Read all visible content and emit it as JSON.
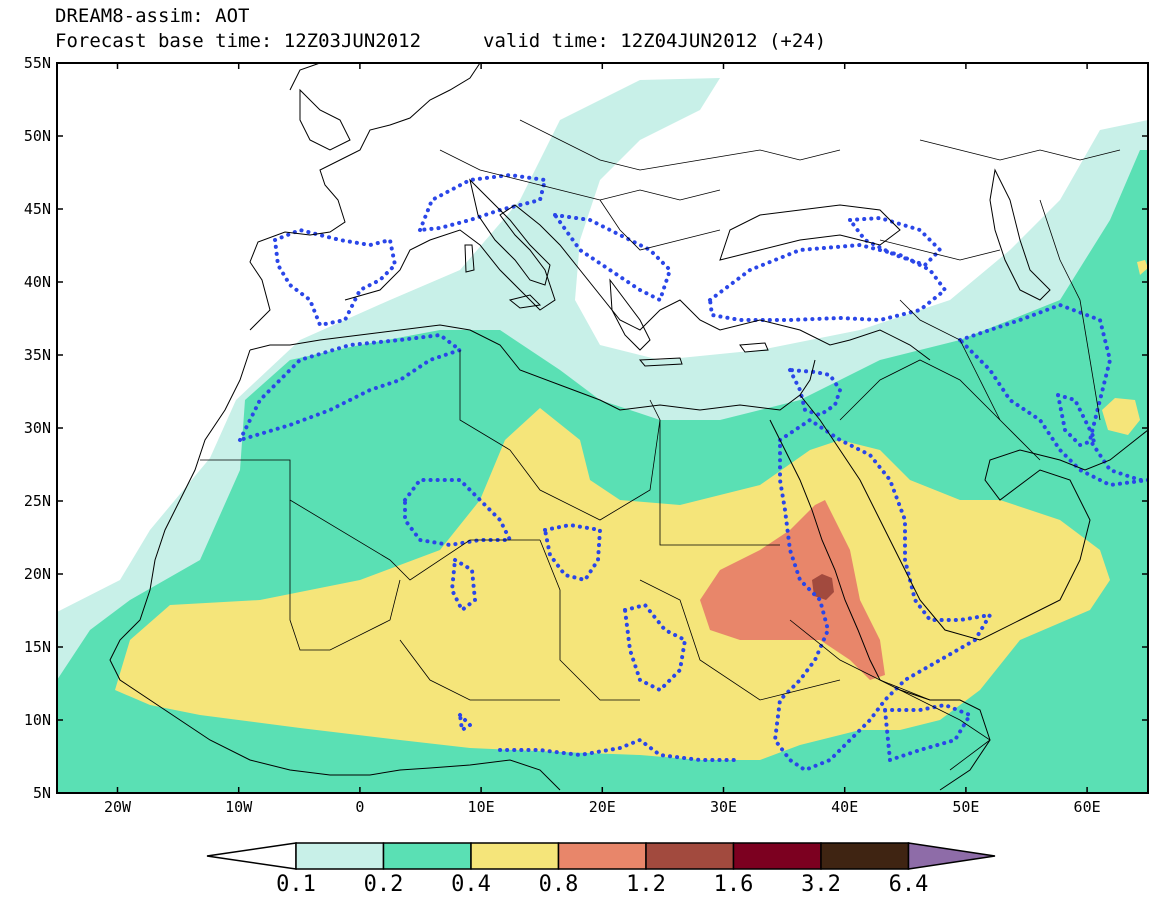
{
  "header": {
    "title": "DREAM8-assim: AOT",
    "base_time": "Forecast base time: 12Z03JUN2012",
    "valid_time": "valid time: 12Z04JUN2012 (+24)"
  },
  "axes": {
    "lat_labels": [
      "55N",
      "50N",
      "45N",
      "40N",
      "35N",
      "30N",
      "25N",
      "20N",
      "15N",
      "10N",
      "5N"
    ],
    "lon_labels": [
      "20W",
      "10W",
      "0",
      "10E",
      "20E",
      "30E",
      "40E",
      "50E",
      "60E"
    ]
  },
  "legend": {
    "colors": [
      "#ffffff",
      "#c8f0e8",
      "#5ae0b4",
      "#f5e57a",
      "#e8866a",
      "#a24a3e",
      "#7c0020",
      "#3f2412",
      "#8e6ca8"
    ],
    "labels": [
      "0.1",
      "0.2",
      "0.4",
      "0.8",
      "1.2",
      "1.6",
      "3.2",
      "6.4"
    ]
  },
  "overlay": {
    "dotted_contour_color": "#2a46e8",
    "land_outline_color": "#000000"
  }
}
